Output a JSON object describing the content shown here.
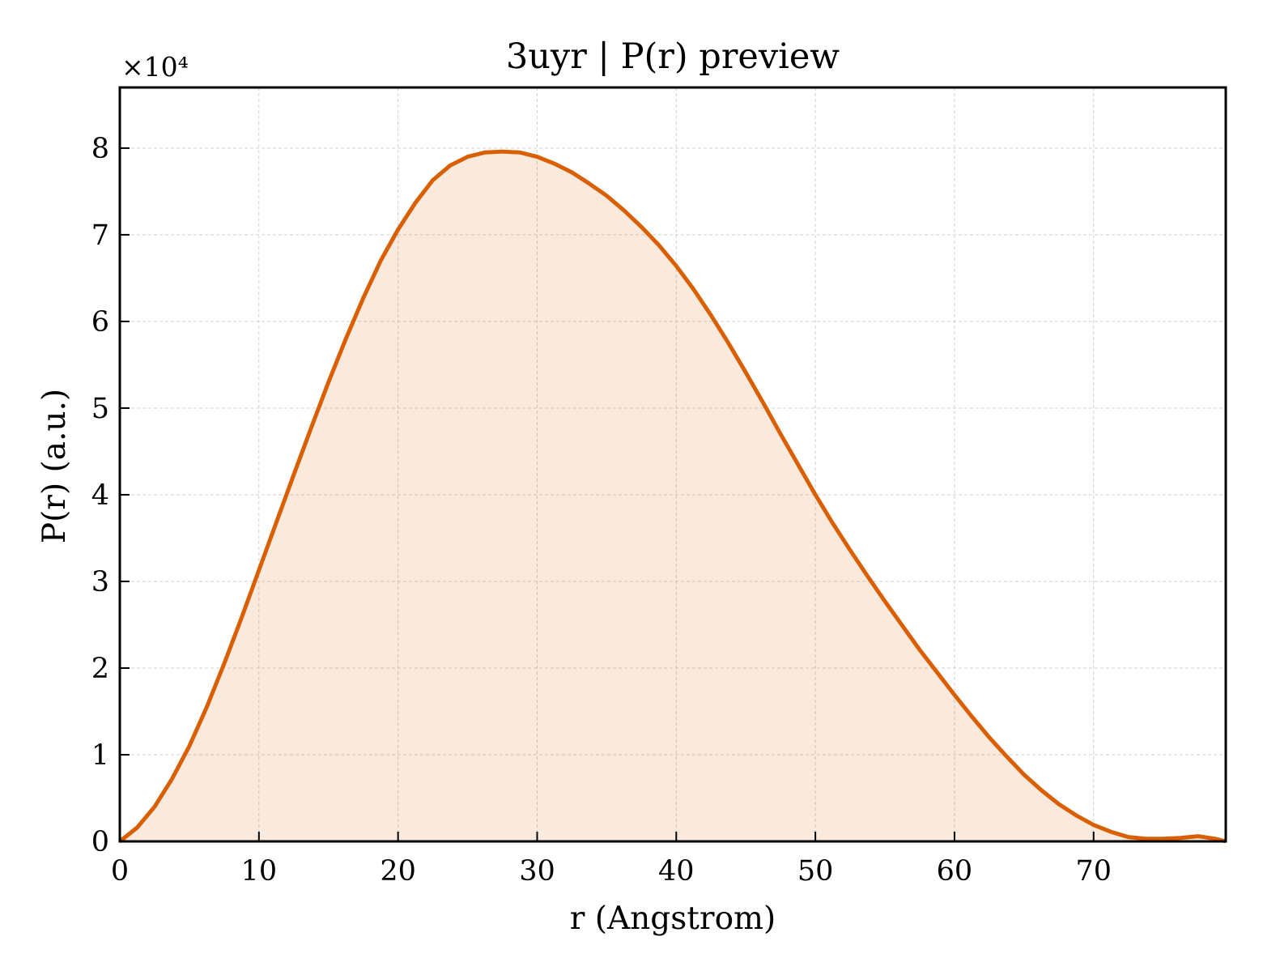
{
  "chart_data": {
    "type": "area",
    "title": "3uyr | P(r) preview",
    "xlabel": "r (Angstrom)",
    "ylabel": "P(r) (a.u.)",
    "y_offset_label": "×10⁴",
    "y_scale": 10000,
    "xlim": [
      0,
      79.5
    ],
    "ylim": [
      0,
      87000
    ],
    "xticks": [
      0,
      10,
      20,
      30,
      40,
      50,
      60,
      70
    ],
    "yticks": [
      0,
      1,
      2,
      3,
      4,
      5,
      6,
      7,
      8
    ],
    "grid": true,
    "line_color": "#d95f02",
    "fill_color": "#d95f02",
    "fill_opacity": 0.13,
    "series": [
      {
        "x": [
          0,
          1.25,
          2.5,
          3.75,
          5,
          6.25,
          7.5,
          8.75,
          10,
          11.25,
          12.5,
          13.75,
          15,
          16.25,
          17.5,
          18.75,
          20,
          21.25,
          22.5,
          23.75,
          25,
          26.25,
          27.5,
          28.75,
          30,
          31.25,
          32.5,
          33.75,
          35,
          36.25,
          37.5,
          38.75,
          40,
          41.25,
          42.5,
          43.75,
          45,
          46.25,
          47.5,
          48.75,
          50,
          51.25,
          52.5,
          53.75,
          55,
          56.25,
          57.5,
          58.75,
          60,
          61.25,
          62.5,
          63.75,
          65,
          66.25,
          67.5,
          68.75,
          70,
          71.25,
          72.5,
          73.75,
          75,
          76.25,
          77.5,
          78.75,
          79.5
        ],
        "y": [
          0,
          1600,
          4000,
          7200,
          11000,
          15500,
          20500,
          25800,
          31300,
          36800,
          42300,
          47700,
          53000,
          58000,
          62700,
          67000,
          70600,
          73700,
          76300,
          78000,
          79000,
          79500,
          79600,
          79500,
          79000,
          78200,
          77200,
          75900,
          74500,
          72800,
          70900,
          68800,
          66400,
          63700,
          60700,
          57500,
          54100,
          50600,
          47000,
          43500,
          40000,
          36700,
          33600,
          30600,
          27700,
          24900,
          22100,
          19500,
          16900,
          14400,
          12000,
          9800,
          7700,
          5900,
          4300,
          3000,
          1900,
          1100,
          500,
          300,
          300,
          400,
          600,
          300,
          0
        ]
      }
    ]
  }
}
